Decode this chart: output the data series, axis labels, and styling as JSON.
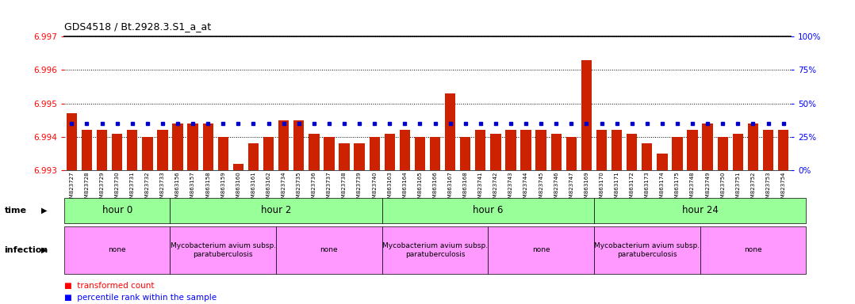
{
  "title": "GDS4518 / Bt.2928.3.S1_a_at",
  "samples": [
    "GSM823727",
    "GSM823728",
    "GSM823729",
    "GSM823730",
    "GSM823731",
    "GSM823732",
    "GSM823733",
    "GSM863156",
    "GSM863157",
    "GSM863158",
    "GSM863159",
    "GSM863160",
    "GSM863161",
    "GSM863162",
    "GSM823734",
    "GSM823735",
    "GSM823736",
    "GSM823737",
    "GSM823738",
    "GSM823739",
    "GSM823740",
    "GSM863163",
    "GSM863164",
    "GSM863165",
    "GSM863166",
    "GSM863167",
    "GSM863168",
    "GSM823741",
    "GSM823742",
    "GSM823743",
    "GSM823744",
    "GSM823745",
    "GSM823746",
    "GSM823747",
    "GSM863169",
    "GSM863170",
    "GSM863171",
    "GSM863172",
    "GSM863173",
    "GSM863174",
    "GSM863175",
    "GSM823748",
    "GSM823749",
    "GSM823750",
    "GSM823751",
    "GSM823752",
    "GSM823753",
    "GSM823754"
  ],
  "red_values": [
    6.9947,
    6.9942,
    6.9942,
    6.9941,
    6.9942,
    6.994,
    6.9942,
    6.9944,
    6.9944,
    6.9944,
    6.994,
    6.9932,
    6.9938,
    6.994,
    6.9945,
    6.9945,
    6.9941,
    6.994,
    6.9938,
    6.9938,
    6.994,
    6.9941,
    6.9942,
    6.994,
    6.994,
    6.9953,
    6.994,
    6.9942,
    6.9941,
    6.9942,
    6.9942,
    6.9942,
    6.9941,
    6.994,
    6.9963,
    6.9942,
    6.9942,
    6.9941,
    6.9938,
    6.9935,
    6.994,
    6.9942,
    6.9944,
    6.994,
    6.9941,
    6.9944,
    6.9942,
    6.9942
  ],
  "blue_values": [
    35,
    35,
    35,
    35,
    35,
    35,
    35,
    35,
    35,
    35,
    35,
    35,
    35,
    35,
    35,
    35,
    35,
    35,
    35,
    35,
    35,
    35,
    35,
    35,
    35,
    35,
    35,
    35,
    35,
    35,
    35,
    35,
    35,
    35,
    35,
    35,
    35,
    35,
    35,
    35,
    35,
    35,
    35,
    35,
    35,
    35,
    35,
    35
  ],
  "y_min": 6.993,
  "y_max": 6.997,
  "bar_color": "#cc2200",
  "dot_color": "#0000cc",
  "time_groups": [
    {
      "label": "hour 0",
      "start": 0,
      "end": 6
    },
    {
      "label": "hour 2",
      "start": 7,
      "end": 20
    },
    {
      "label": "hour 6",
      "start": 21,
      "end": 34
    },
    {
      "label": "hour 24",
      "start": 35,
      "end": 48
    }
  ],
  "infection_groups": [
    {
      "label": "none",
      "start": 0,
      "end": 6
    },
    {
      "label": "Mycobacterium avium subsp.\nparatuberculosis",
      "start": 7,
      "end": 13
    },
    {
      "label": "none",
      "start": 14,
      "end": 20
    },
    {
      "label": "Mycobacterium avium subsp.\nparatuberculosis",
      "start": 21,
      "end": 27
    },
    {
      "label": "none",
      "start": 28,
      "end": 34
    },
    {
      "label": "Mycobacterium avium subsp.\nparatuberculosis",
      "start": 35,
      "end": 41
    },
    {
      "label": "none",
      "start": 42,
      "end": 48
    }
  ],
  "time_color": "#99ff99",
  "infection_none_color": "#ff99ff",
  "infection_myco_color": "#ff99ff"
}
